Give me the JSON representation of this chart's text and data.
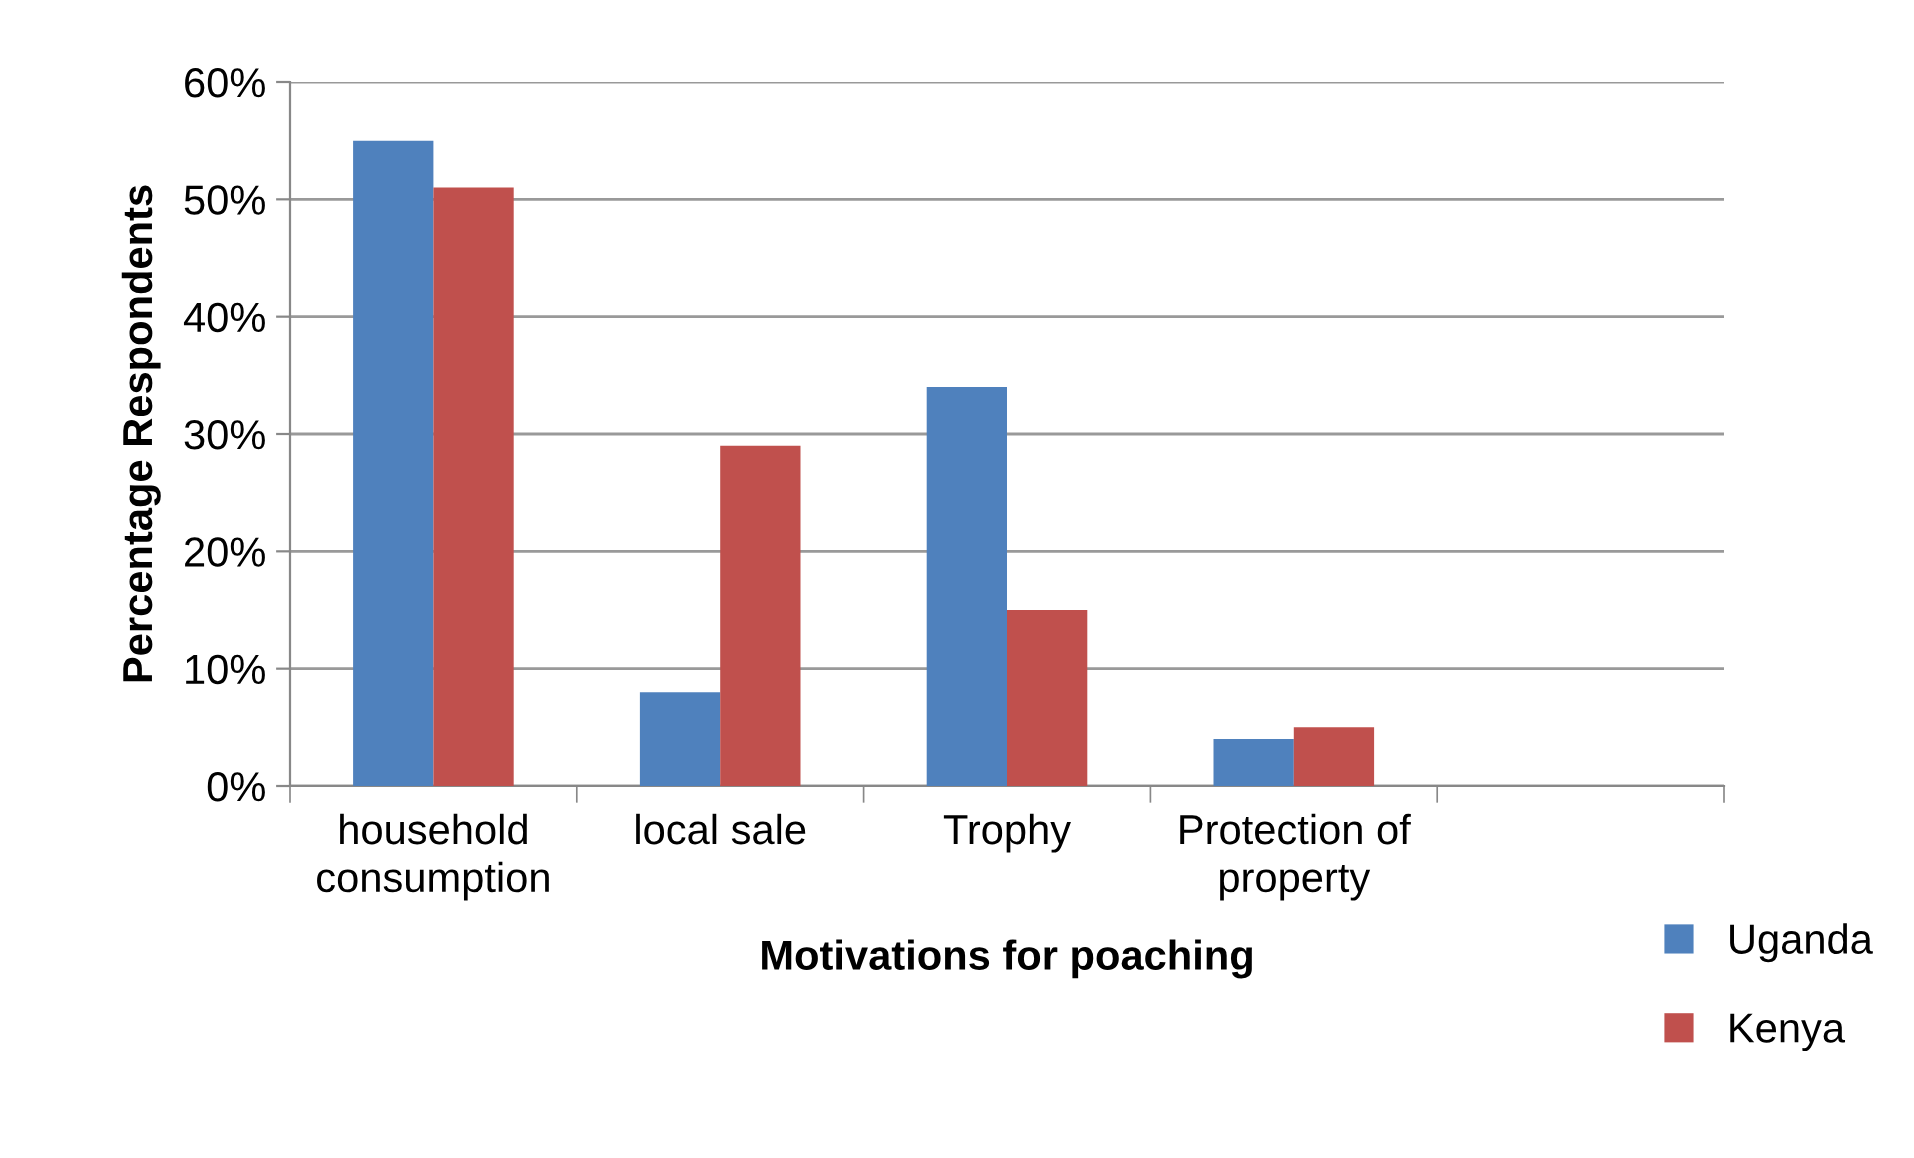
{
  "chart_data": {
    "type": "bar",
    "xlabel": "Motivations for poaching",
    "ylabel": "Percentage Respondents",
    "categories": [
      "household\nconsumption",
      "local sale",
      "Trophy",
      "Protection of\nproperty",
      null
    ],
    "series": [
      {
        "name": "Uganda",
        "color": "#4f81bd",
        "values": [
          55,
          8,
          34,
          4,
          null
        ]
      },
      {
        "name": "Kenya",
        "color": "#c0504d",
        "values": [
          51,
          29,
          15,
          5,
          null
        ]
      }
    ],
    "ylim": [
      0,
      60
    ],
    "yticks": [
      {
        "value": 0,
        "label": "0%"
      },
      {
        "value": 10,
        "label": "10%"
      },
      {
        "value": 20,
        "label": "20%"
      },
      {
        "value": 30,
        "label": "30%"
      },
      {
        "value": 40,
        "label": "40%"
      },
      {
        "value": 50,
        "label": "50%"
      },
      {
        "value": 60,
        "label": "60%"
      }
    ],
    "grid": "y",
    "legend": "bottom right"
  }
}
